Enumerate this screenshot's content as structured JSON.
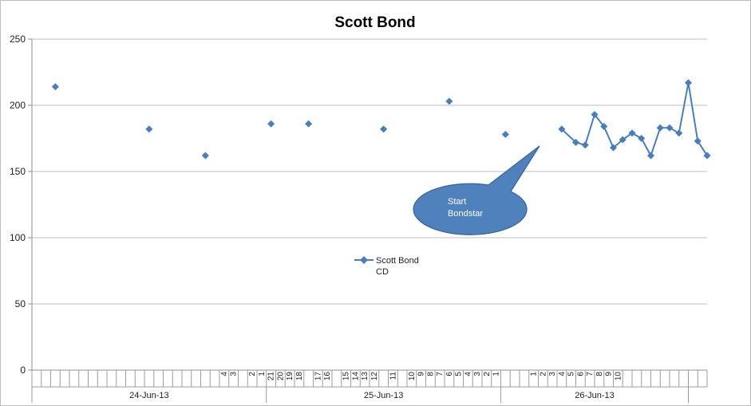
{
  "chart_data": {
    "type": "line",
    "title": "Scott Bond",
    "ylim": [
      0,
      250
    ],
    "yticks": [
      "0",
      "50",
      "100",
      "150",
      "200",
      "250"
    ],
    "grid": true,
    "legend_position": "center",
    "series": [
      {
        "name": "Scott Bond CD",
        "color": "#4a7ebb",
        "x": [
          2,
          12,
          18,
          25,
          29,
          37,
          44,
          50,
          56,
          57.5,
          58.5,
          59.5,
          60.5,
          61.5,
          62.5,
          63.5,
          64.5,
          65.5,
          66.5,
          67.5,
          68.5,
          69.5,
          70.5,
          71.5,
          72.5
        ],
        "values": [
          214,
          182,
          162,
          186,
          186,
          182,
          203,
          178,
          182,
          172,
          170,
          193,
          184,
          168,
          174,
          179,
          175,
          162,
          183,
          183,
          179,
          217,
          173,
          162,
          null
        ],
        "segments": [
          [
            0
          ],
          [
            1
          ],
          [
            2
          ],
          [
            3
          ],
          [
            4
          ],
          [
            5
          ],
          [
            6
          ],
          [
            7
          ],
          [
            8,
            9,
            10,
            11,
            12,
            13,
            14,
            15,
            16,
            17,
            18,
            19,
            20,
            21,
            22,
            23
          ]
        ]
      }
    ],
    "x_tick_labels": [
      {
        "pos": 20,
        "text": "4"
      },
      {
        "pos": 21,
        "text": "3"
      },
      {
        "pos": 23,
        "text": "2"
      },
      {
        "pos": 24,
        "text": "1"
      },
      {
        "pos": 25,
        "text": "21"
      },
      {
        "pos": 26,
        "text": "20"
      },
      {
        "pos": 27,
        "text": "19"
      },
      {
        "pos": 28,
        "text": "18"
      },
      {
        "pos": 30,
        "text": "17"
      },
      {
        "pos": 31,
        "text": "16"
      },
      {
        "pos": 33,
        "text": "15"
      },
      {
        "pos": 34,
        "text": "14"
      },
      {
        "pos": 35,
        "text": "13"
      },
      {
        "pos": 36,
        "text": "12"
      },
      {
        "pos": 38,
        "text": "11"
      },
      {
        "pos": 40,
        "text": "10"
      },
      {
        "pos": 41,
        "text": "9"
      },
      {
        "pos": 42,
        "text": "8"
      },
      {
        "pos": 43,
        "text": "7"
      },
      {
        "pos": 44,
        "text": "6"
      },
      {
        "pos": 45,
        "text": "5"
      },
      {
        "pos": 46,
        "text": "4"
      },
      {
        "pos": 47,
        "text": "3"
      },
      {
        "pos": 48,
        "text": "2"
      },
      {
        "pos": 49,
        "text": "1"
      },
      {
        "pos": 53,
        "text": "1"
      },
      {
        "pos": 54,
        "text": "2"
      },
      {
        "pos": 55,
        "text": "3"
      },
      {
        "pos": 56,
        "text": "4"
      },
      {
        "pos": 57,
        "text": "5"
      },
      {
        "pos": 58,
        "text": "6"
      },
      {
        "pos": 59,
        "text": "7"
      },
      {
        "pos": 60,
        "text": "8"
      },
      {
        "pos": 61,
        "text": "9"
      },
      {
        "pos": 62,
        "text": "10"
      }
    ],
    "date_groups": [
      {
        "label": "24-Jun-13",
        "start": 0,
        "end": 25
      },
      {
        "label": "25-Jun-13",
        "start": 25,
        "end": 50
      },
      {
        "label": "26-Jun-13",
        "start": 50,
        "end": 70
      }
    ],
    "annotation": {
      "text": [
        "Start",
        "Bondstar"
      ]
    },
    "legend": {
      "label_lines": [
        "Scott Bond",
        "CD"
      ]
    }
  }
}
